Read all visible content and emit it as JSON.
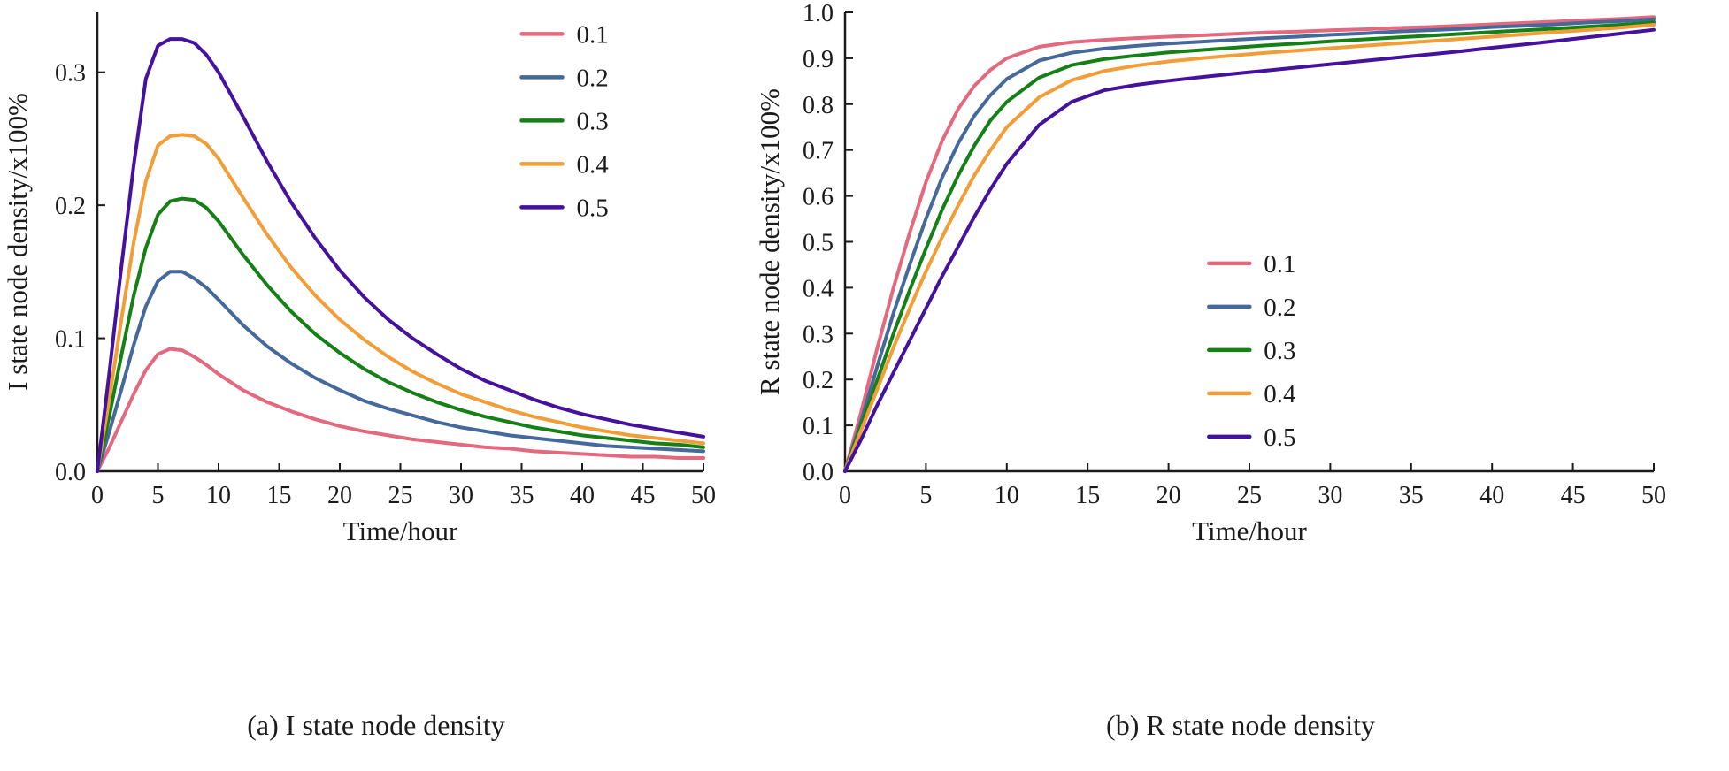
{
  "chart_data": [
    {
      "type": "line",
      "caption": "(a) I state node density",
      "xlabel": "Time/hour",
      "ylabel": "I state node density/x100%",
      "xlim": [
        0,
        50
      ],
      "ylim": [
        0,
        0.345
      ],
      "grid": false,
      "legend_position": "top-right-inside",
      "legend_pos": [
        0.7,
        0.02
      ],
      "xticks": [
        0,
        5,
        10,
        15,
        20,
        25,
        30,
        35,
        40,
        45,
        50
      ],
      "xtick_labels": [
        "0",
        "5",
        "10",
        "15",
        "20",
        "25",
        "30",
        "35",
        "40",
        "45",
        "50"
      ],
      "yticks": [
        0,
        0.1,
        0.2,
        0.3
      ],
      "ytick_labels": [
        "0.0",
        "0.1",
        "0.2",
        "0.3"
      ],
      "x": [
        0,
        1,
        2,
        3,
        4,
        5,
        6,
        7,
        8,
        9,
        10,
        12,
        14,
        16,
        18,
        20,
        22,
        24,
        26,
        28,
        30,
        32,
        34,
        36,
        38,
        40,
        42,
        44,
        46,
        48,
        50
      ],
      "series": [
        {
          "name": "0.1",
          "color": "#e2697e",
          "values": [
            0,
            0.018,
            0.038,
            0.058,
            0.076,
            0.088,
            0.092,
            0.091,
            0.086,
            0.08,
            0.073,
            0.061,
            0.052,
            0.045,
            0.039,
            0.034,
            0.03,
            0.027,
            0.024,
            0.022,
            0.02,
            0.018,
            0.017,
            0.015,
            0.014,
            0.013,
            0.012,
            0.011,
            0.011,
            0.01,
            0.01
          ]
        },
        {
          "name": "0.2",
          "color": "#46699c",
          "values": [
            0,
            0.03,
            0.062,
            0.095,
            0.124,
            0.143,
            0.15,
            0.15,
            0.145,
            0.138,
            0.129,
            0.11,
            0.094,
            0.081,
            0.07,
            0.061,
            0.053,
            0.047,
            0.042,
            0.037,
            0.033,
            0.03,
            0.027,
            0.025,
            0.023,
            0.021,
            0.019,
            0.018,
            0.017,
            0.016,
            0.015
          ]
        },
        {
          "name": "0.3",
          "color": "#158015",
          "values": [
            0,
            0.042,
            0.088,
            0.132,
            0.168,
            0.193,
            0.203,
            0.205,
            0.204,
            0.198,
            0.188,
            0.163,
            0.14,
            0.12,
            0.103,
            0.089,
            0.077,
            0.067,
            0.059,
            0.052,
            0.046,
            0.041,
            0.037,
            0.033,
            0.03,
            0.027,
            0.025,
            0.023,
            0.021,
            0.02,
            0.018
          ]
        },
        {
          "name": "0.4",
          "color": "#f19d38",
          "values": [
            0,
            0.055,
            0.115,
            0.172,
            0.218,
            0.245,
            0.252,
            0.253,
            0.252,
            0.246,
            0.235,
            0.206,
            0.178,
            0.153,
            0.132,
            0.114,
            0.099,
            0.086,
            0.075,
            0.066,
            0.058,
            0.052,
            0.046,
            0.041,
            0.037,
            0.033,
            0.03,
            0.027,
            0.025,
            0.023,
            0.021
          ]
        },
        {
          "name": "0.5",
          "color": "#45129e",
          "values": [
            0,
            0.075,
            0.155,
            0.23,
            0.295,
            0.32,
            0.325,
            0.325,
            0.322,
            0.313,
            0.3,
            0.267,
            0.233,
            0.202,
            0.175,
            0.151,
            0.131,
            0.114,
            0.1,
            0.088,
            0.077,
            0.068,
            0.061,
            0.054,
            0.048,
            0.043,
            0.039,
            0.035,
            0.032,
            0.029,
            0.026
          ]
        }
      ]
    },
    {
      "type": "line",
      "caption": "(b) R state node density",
      "xlabel": "Time/hour",
      "ylabel": "R state node density/x100%",
      "xlim": [
        0,
        50
      ],
      "ylim": [
        0,
        1.0
      ],
      "grid": false,
      "legend_position": "middle-right-inside",
      "legend_pos": [
        0.45,
        0.52
      ],
      "xticks": [
        0,
        5,
        10,
        15,
        20,
        25,
        30,
        35,
        40,
        45,
        50
      ],
      "xtick_labels": [
        "0",
        "5",
        "10",
        "15",
        "20",
        "25",
        "30",
        "35",
        "40",
        "45",
        "50"
      ],
      "yticks": [
        0,
        0.1,
        0.2,
        0.3,
        0.4,
        0.5,
        0.6,
        0.7,
        0.8,
        0.9,
        1.0
      ],
      "ytick_labels": [
        "0.0",
        "0.1",
        "0.2",
        "0.3",
        "0.4",
        "0.5",
        "0.6",
        "0.7",
        "0.8",
        "0.9",
        "1.0"
      ],
      "x": [
        0,
        1,
        2,
        3,
        4,
        5,
        6,
        7,
        8,
        9,
        10,
        12,
        14,
        16,
        18,
        20,
        22,
        24,
        26,
        28,
        30,
        32,
        34,
        36,
        38,
        40,
        42,
        44,
        46,
        48,
        50
      ],
      "series": [
        {
          "name": "0.1",
          "color": "#e2697e",
          "values": [
            0,
            0.13,
            0.27,
            0.4,
            0.52,
            0.63,
            0.72,
            0.79,
            0.84,
            0.875,
            0.9,
            0.925,
            0.935,
            0.94,
            0.944,
            0.947,
            0.95,
            0.953,
            0.956,
            0.958,
            0.961,
            0.963,
            0.966,
            0.968,
            0.971,
            0.974,
            0.977,
            0.98,
            0.983,
            0.986,
            0.99
          ]
        },
        {
          "name": "0.2",
          "color": "#46699c",
          "values": [
            0,
            0.11,
            0.23,
            0.345,
            0.45,
            0.55,
            0.64,
            0.715,
            0.775,
            0.82,
            0.855,
            0.895,
            0.912,
            0.921,
            0.927,
            0.932,
            0.936,
            0.94,
            0.944,
            0.947,
            0.951,
            0.954,
            0.958,
            0.961,
            0.964,
            0.968,
            0.971,
            0.974,
            0.978,
            0.981,
            0.985
          ]
        },
        {
          "name": "0.3",
          "color": "#158015",
          "values": [
            0,
            0.1,
            0.2,
            0.3,
            0.395,
            0.485,
            0.57,
            0.645,
            0.71,
            0.765,
            0.805,
            0.858,
            0.885,
            0.898,
            0.906,
            0.913,
            0.918,
            0.923,
            0.928,
            0.932,
            0.937,
            0.941,
            0.945,
            0.949,
            0.953,
            0.957,
            0.961,
            0.965,
            0.969,
            0.973,
            0.978
          ]
        },
        {
          "name": "0.4",
          "color": "#f19d38",
          "values": [
            0,
            0.09,
            0.18,
            0.27,
            0.355,
            0.435,
            0.51,
            0.58,
            0.645,
            0.7,
            0.75,
            0.815,
            0.852,
            0.872,
            0.884,
            0.893,
            0.9,
            0.906,
            0.912,
            0.917,
            0.922,
            0.927,
            0.932,
            0.937,
            0.942,
            0.947,
            0.952,
            0.957,
            0.962,
            0.967,
            0.973
          ]
        },
        {
          "name": "0.5",
          "color": "#45129e",
          "values": [
            0,
            0.07,
            0.145,
            0.215,
            0.285,
            0.355,
            0.425,
            0.49,
            0.555,
            0.615,
            0.67,
            0.755,
            0.805,
            0.83,
            0.842,
            0.851,
            0.859,
            0.866,
            0.873,
            0.88,
            0.887,
            0.894,
            0.901,
            0.908,
            0.915,
            0.923,
            0.93,
            0.938,
            0.946,
            0.954,
            0.962
          ]
        }
      ]
    }
  ]
}
